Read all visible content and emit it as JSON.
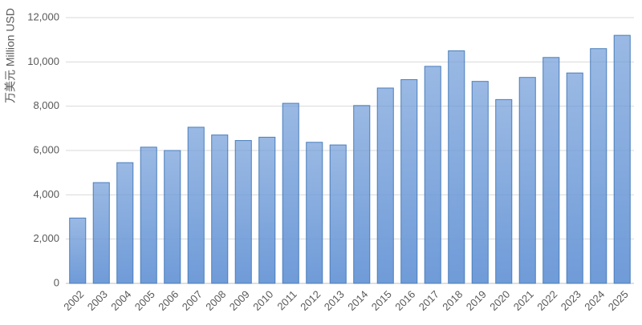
{
  "chart_data": {
    "type": "bar",
    "y_label": "万美元 Million USD",
    "categories": [
      "2002",
      "2003",
      "2004",
      "2005",
      "2006",
      "2007",
      "2008",
      "2009",
      "2010",
      "2011",
      "2012",
      "2013",
      "2014",
      "2015",
      "2016",
      "2017",
      "2018",
      "2019",
      "2020",
      "2021",
      "2022",
      "2023",
      "2024",
      "2025"
    ],
    "values": [
      2950,
      4550,
      5450,
      6150,
      6000,
      7050,
      6700,
      6450,
      6600,
      8130,
      6370,
      6250,
      8030,
      8820,
      9200,
      9800,
      10500,
      9120,
      8300,
      9300,
      10200,
      9500,
      10600,
      11200
    ],
    "color": "#6f9bd8",
    "edge_color": "#4a7ebb",
    "ylim": [
      0,
      12000
    ],
    "yticks": [
      0,
      {
        "value": 2000,
        "label": "2,000"
      },
      {
        "value": 4000,
        "label": "4,000"
      },
      {
        "value": 6000,
        "label": "6,000"
      },
      {
        "value": 8000,
        "label": "8,000"
      },
      {
        "value": 10000,
        "label": "10,000"
      },
      {
        "value": 12000,
        "label": "12,000"
      }
    ],
    "grid": true
  }
}
